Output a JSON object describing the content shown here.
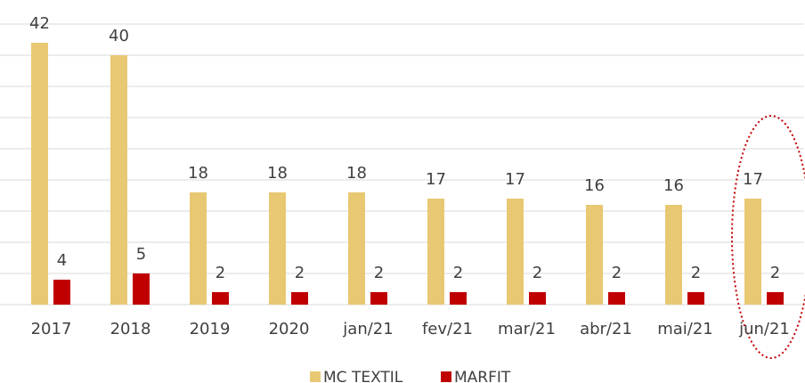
{
  "chart_data": {
    "type": "bar",
    "categories": [
      "2017",
      "2018",
      "2019",
      "2020",
      "jan/21",
      "fev/21",
      "mar/21",
      "abr/21",
      "mai/21",
      "jun/21"
    ],
    "series": [
      {
        "name": "MC TEXTIL",
        "color": "#e8c872",
        "values": [
          42,
          40,
          18,
          18,
          18,
          17,
          17,
          16,
          16,
          17
        ]
      },
      {
        "name": "MARFIT",
        "color": "#c00000",
        "values": [
          4,
          5,
          2,
          2,
          2,
          2,
          2,
          2,
          2,
          2
        ]
      }
    ],
    "ylim": [
      0,
      45
    ],
    "yticks": [
      0,
      5,
      10,
      15,
      20,
      25,
      30,
      35,
      40,
      45
    ],
    "grid": true
  }
}
